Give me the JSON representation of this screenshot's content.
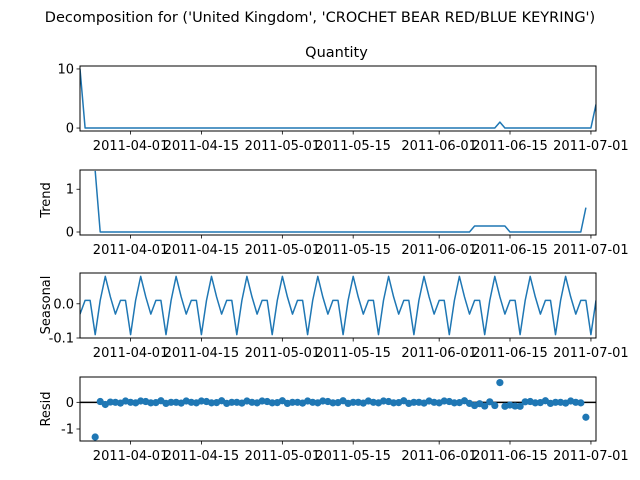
{
  "figure_title": "Decomposition for ('United Kingdom', 'CROCHET BEAR RED/BLUE  KEYRING')",
  "x_tick_labels": [
    "2011-04-01",
    "2011-04-15",
    "2011-05-01",
    "2011-05-15",
    "2011-06-01",
    "2011-06-15",
    "2011-07-01"
  ],
  "colors": {
    "series": "#1f77b4",
    "axis": "#000000"
  },
  "chart_data": [
    {
      "type": "line",
      "title": "Quantity",
      "ylabel": "",
      "ylim": [
        -0.5,
        10.5
      ],
      "yticks": [
        0,
        10
      ],
      "x_start": "2011-03-22",
      "x_end": "2011-07-02",
      "x": [
        "2011-03-22",
        "2011-03-23",
        "2011-06-12",
        "2011-06-13",
        "2011-06-14",
        "2011-07-01",
        "2011-07-02"
      ],
      "values": [
        10,
        0,
        0,
        1,
        0,
        0,
        4
      ]
    },
    {
      "type": "line",
      "title": "",
      "ylabel": "Trend",
      "ylim": [
        -0.07,
        1.45
      ],
      "yticks": [
        0,
        1
      ],
      "x": [
        "2011-03-25",
        "2011-03-26",
        "2011-06-07",
        "2011-06-08",
        "2011-06-14",
        "2011-06-15",
        "2011-06-29",
        "2011-06-30"
      ],
      "values": [
        1.43,
        0,
        0,
        0.14,
        0.14,
        0,
        0,
        0.57
      ]
    },
    {
      "type": "line",
      "title": "",
      "ylabel": "Seasonal",
      "ylim": [
        -0.1,
        0.09
      ],
      "yticks": [
        0.0,
        -0.1
      ],
      "x_start": "2011-03-22",
      "x_end": "2011-07-02",
      "weekly_pattern": [
        -0.03,
        0.01,
        0.01,
        -0.09,
        0.01,
        0.08,
        0.02
      ]
    },
    {
      "type": "scatter",
      "title": "",
      "ylabel": "Resid",
      "ylim": [
        -1.45,
        0.95
      ],
      "yticks": [
        0,
        -1
      ],
      "x": [
        "2011-03-25",
        "2011-03-26",
        "2011-03-27",
        "2011-03-28",
        "2011-03-29",
        "2011-03-30",
        "2011-03-31",
        "2011-04-01",
        "2011-04-02",
        "2011-04-03",
        "2011-04-04",
        "2011-04-05",
        "2011-04-06",
        "2011-04-07",
        "2011-04-08",
        "2011-04-09",
        "2011-04-10",
        "2011-04-11",
        "2011-04-12",
        "2011-04-13",
        "2011-04-14",
        "2011-04-15",
        "2011-04-16",
        "2011-04-17",
        "2011-04-18",
        "2011-04-19",
        "2011-04-20",
        "2011-04-21",
        "2011-04-22",
        "2011-04-23",
        "2011-04-24",
        "2011-04-25",
        "2011-04-26",
        "2011-04-27",
        "2011-04-28",
        "2011-04-29",
        "2011-04-30",
        "2011-05-01",
        "2011-05-02",
        "2011-05-03",
        "2011-05-04",
        "2011-05-05",
        "2011-05-06",
        "2011-05-07",
        "2011-05-08",
        "2011-05-09",
        "2011-05-10",
        "2011-05-11",
        "2011-05-12",
        "2011-05-13",
        "2011-05-14",
        "2011-05-15",
        "2011-05-16",
        "2011-05-17",
        "2011-05-18",
        "2011-05-19",
        "2011-05-20",
        "2011-05-21",
        "2011-05-22",
        "2011-05-23",
        "2011-05-24",
        "2011-05-25",
        "2011-05-26",
        "2011-05-27",
        "2011-05-28",
        "2011-05-29",
        "2011-05-30",
        "2011-05-31",
        "2011-06-01",
        "2011-06-02",
        "2011-06-03",
        "2011-06-04",
        "2011-06-05",
        "2011-06-06",
        "2011-06-07",
        "2011-06-08",
        "2011-06-09",
        "2011-06-10",
        "2011-06-11",
        "2011-06-12",
        "2011-06-13",
        "2011-06-14",
        "2011-06-15",
        "2011-06-16",
        "2011-06-17",
        "2011-06-18",
        "2011-06-19",
        "2011-06-20",
        "2011-06-21",
        "2011-06-22",
        "2011-06-23",
        "2011-06-24",
        "2011-06-25",
        "2011-06-26",
        "2011-06-27",
        "2011-06-28",
        "2011-06-29",
        "2011-06-30"
      ],
      "values": [
        -1.3,
        0.03,
        -0.08,
        0.01,
        0.0,
        -0.03,
        0.05,
        0.0,
        -0.02,
        0.05,
        0.03,
        -0.02,
        -0.01,
        0.06,
        -0.04,
        0.0,
        0.0,
        -0.03,
        0.05,
        0.0,
        -0.02,
        0.05,
        0.03,
        -0.02,
        -0.01,
        0.06,
        -0.04,
        0.0,
        0.0,
        -0.03,
        0.05,
        0.0,
        -0.02,
        0.05,
        0.03,
        -0.02,
        -0.01,
        0.06,
        -0.04,
        0.0,
        0.0,
        -0.03,
        0.05,
        0.0,
        -0.02,
        0.05,
        0.03,
        -0.02,
        -0.01,
        0.06,
        -0.04,
        0.0,
        0.0,
        -0.03,
        0.05,
        0.0,
        -0.02,
        0.05,
        0.03,
        -0.02,
        -0.01,
        0.06,
        -0.04,
        0.0,
        0.0,
        -0.03,
        0.05,
        0.0,
        -0.02,
        0.05,
        0.03,
        -0.02,
        -0.01,
        0.06,
        -0.04,
        -0.12,
        -0.05,
        -0.14,
        0.02,
        -0.12,
        0.74,
        -0.15,
        -0.1,
        -0.14,
        -0.15,
        0.02,
        0.03,
        -0.02,
        -0.01,
        0.06,
        -0.04,
        0.0,
        0.0,
        -0.03,
        0.05,
        0.0,
        -0.02,
        -0.56
      ]
    }
  ]
}
